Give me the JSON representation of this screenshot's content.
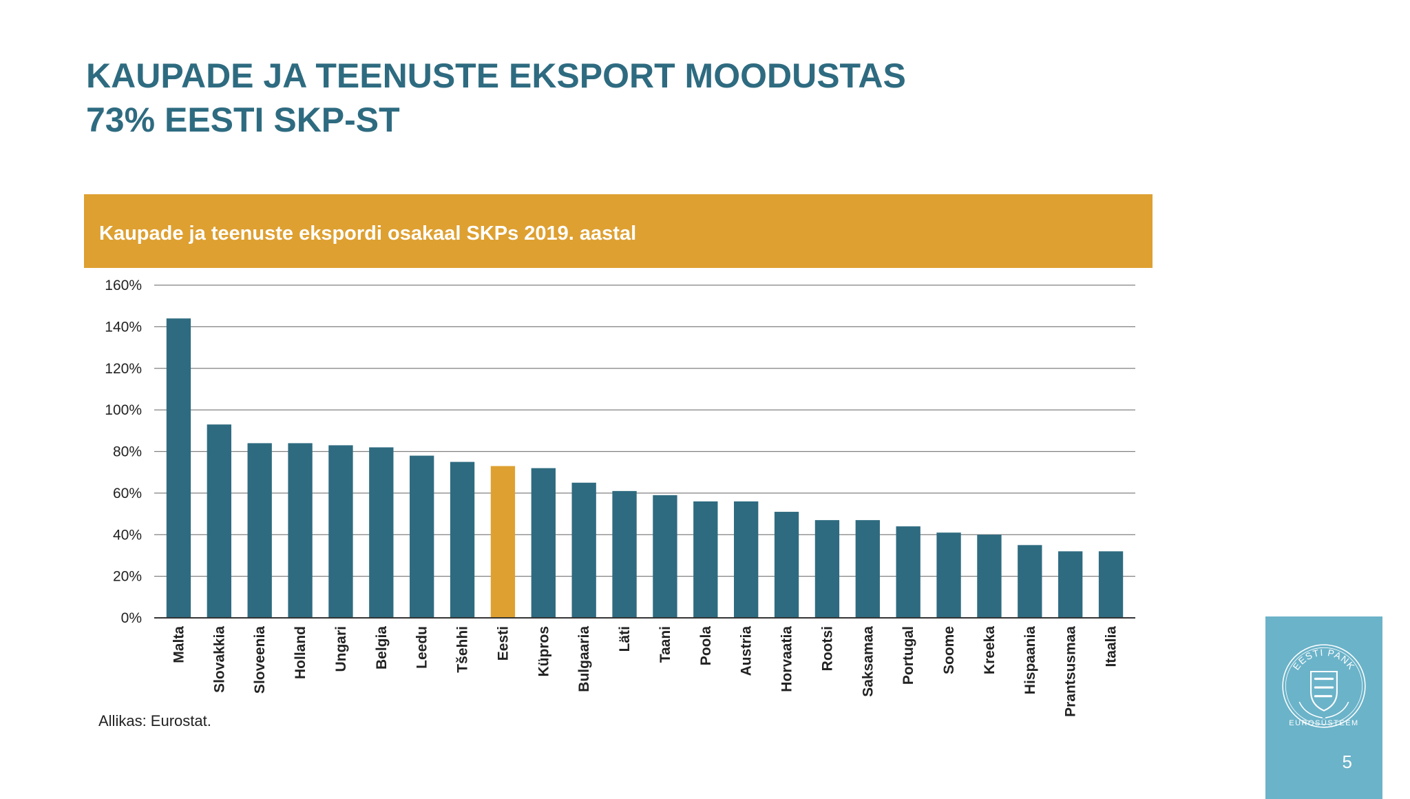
{
  "title_lines": [
    "KAUPADE JA TEENUSTE EKSPORT MOODUSTAS",
    "73% EESTI SKP-ST"
  ],
  "source": "Allikas: Eurostat.",
  "logo": {
    "ring_text": "EESTI PANK",
    "caption": "EUROSÜSTEEM",
    "icon": "eesti-pank-seal-icon"
  },
  "page_number": "5",
  "colors": {
    "title": "#2e6b80",
    "banner": "#dea031",
    "bar": "#2e6b80",
    "highlight_bar": "#dea031",
    "brand_panel": "#6bb3c9"
  },
  "chart_data": {
    "type": "bar",
    "title": "Kaupade ja teenuste ekspordi osakaal SKPs 2019. aastal",
    "categories": [
      "Malta",
      "Slovakkia",
      "Sloveenia",
      "Holland",
      "Ungari",
      "Belgia",
      "Leedu",
      "Tšehhi",
      "Eesti",
      "Küpros",
      "Bulgaaria",
      "Läti",
      "Taani",
      "Poola",
      "Austria",
      "Horvaatia",
      "Rootsi",
      "Saksamaa",
      "Portugal",
      "Soome",
      "Kreeka",
      "Hispaania",
      "Prantsusmaa",
      "Itaalia"
    ],
    "values": [
      144,
      93,
      84,
      84,
      83,
      82,
      78,
      75,
      73,
      72,
      65,
      61,
      59,
      56,
      56,
      51,
      47,
      47,
      44,
      41,
      40,
      35,
      32,
      32
    ],
    "highlight": "Eesti",
    "unit": "%",
    "ylim": [
      0,
      160
    ],
    "yticks": [
      0,
      20,
      40,
      60,
      80,
      100,
      120,
      140,
      160
    ],
    "ytick_labels": [
      "0%",
      "20%",
      "40%",
      "60%",
      "80%",
      "100%",
      "120%",
      "140%",
      "160%"
    ],
    "grid": true,
    "legend": "none"
  }
}
